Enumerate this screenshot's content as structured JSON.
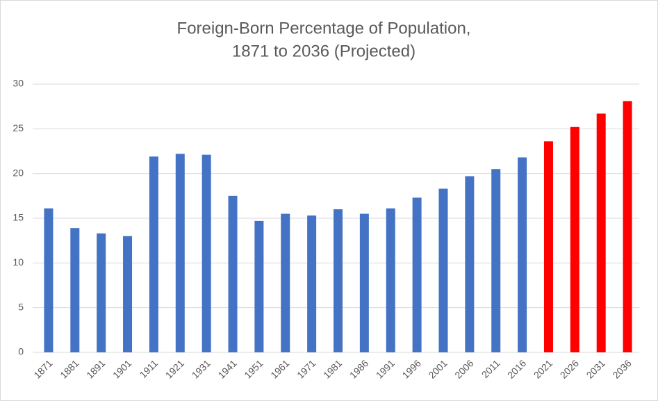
{
  "chart_data": {
    "type": "bar",
    "title": [
      "Foreign-Born Percentage of Population,",
      "1871 to 2036 (Projected)"
    ],
    "categories": [
      "1871",
      "1881",
      "1891",
      "1901",
      "1911",
      "1921",
      "1931",
      "1941",
      "1951",
      "1961",
      "1971",
      "1981",
      "1986",
      "1991",
      "1996",
      "2001",
      "2006",
      "2011",
      "2016",
      "2021",
      "2026",
      "2031",
      "2036"
    ],
    "values": [
      16.1,
      13.9,
      13.3,
      13.0,
      21.9,
      22.2,
      22.1,
      17.5,
      14.7,
      15.5,
      15.3,
      16.0,
      15.5,
      16.1,
      17.3,
      18.3,
      19.7,
      20.5,
      21.8,
      23.6,
      25.2,
      26.7,
      28.1
    ],
    "colors": [
      "#4472c4",
      "#4472c4",
      "#4472c4",
      "#4472c4",
      "#4472c4",
      "#4472c4",
      "#4472c4",
      "#4472c4",
      "#4472c4",
      "#4472c4",
      "#4472c4",
      "#4472c4",
      "#4472c4",
      "#4472c4",
      "#4472c4",
      "#4472c4",
      "#4472c4",
      "#4472c4",
      "#4472c4",
      "#ff0000",
      "#ff0000",
      "#ff0000",
      "#ff0000"
    ],
    "ylim": [
      0,
      30
    ],
    "yticks": [
      0,
      5,
      10,
      15,
      20,
      25,
      30
    ],
    "grid": true
  }
}
